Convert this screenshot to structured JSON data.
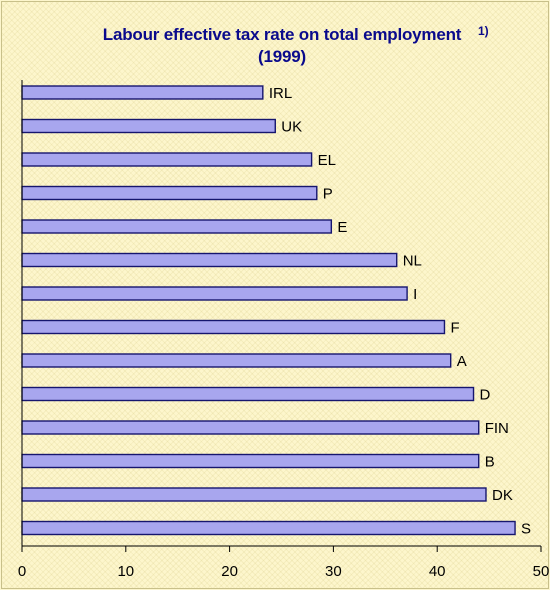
{
  "chart_data": {
    "type": "bar",
    "orientation": "horizontal",
    "title": "Labour effective tax rate on total employment",
    "title_line2": "(1999)",
    "footnote_marker": "1)",
    "categories": [
      "IRL",
      "UK",
      "EL",
      "P",
      "E",
      "NL",
      "I",
      "F",
      "A",
      "D",
      "FIN",
      "B",
      "DK",
      "S"
    ],
    "values": [
      23.2,
      24.4,
      27.9,
      28.4,
      29.8,
      36.1,
      37.1,
      40.7,
      41.3,
      43.5,
      44.0,
      44.0,
      44.7,
      47.5
    ],
    "xlim": [
      0,
      50
    ],
    "xticks": [
      0,
      10,
      20,
      30,
      40,
      50
    ],
    "xlabel": "",
    "ylabel": "",
    "grid": false,
    "legend": "none",
    "colors": {
      "bar_fill": "#a8a6ee",
      "bar_edge": "#16166e",
      "title": "#0a0a8c",
      "background": "#fdf6cc"
    }
  }
}
